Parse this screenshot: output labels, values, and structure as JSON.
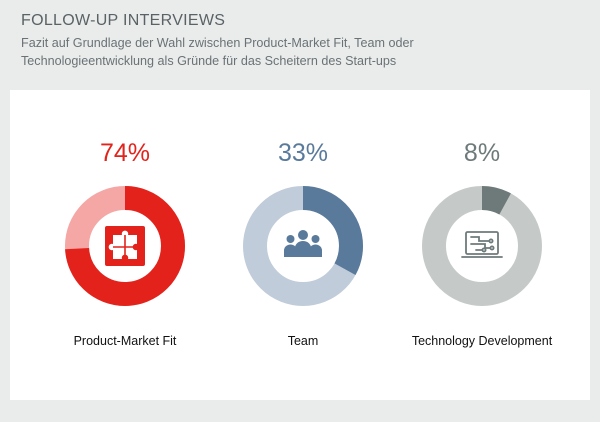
{
  "header": {
    "title": "FOLLOW-UP INTERVIEWS",
    "subtitle_line1": "Fazit auf Grundlage der Wahl zwischen Product-Market Fit, Team oder",
    "subtitle_line2": "Technologieentwicklung als Gründe für das Scheitern des Start-ups"
  },
  "chart_data": {
    "type": "pie",
    "title": "FOLLOW-UP INTERVIEWS",
    "subtitle": "Fazit auf Grundlage der Wahl zwischen Product-Market Fit, Team oder Technologieentwicklung als Gründe für das Scheitern des Start-ups",
    "charts": [
      {
        "label": "Product-Market Fit",
        "value": 74,
        "display": "74%",
        "color": "#e3231b",
        "remainder_color": "#f4a7a4",
        "pct_color": "#e3231b",
        "icon": "puzzle-icon"
      },
      {
        "label": "Team",
        "value": 33,
        "display": "33%",
        "color": "#5a7a9c",
        "remainder_color": "#c0ccd9",
        "pct_color": "#5a7a9c",
        "icon": "team-icon"
      },
      {
        "label": "Technology Development",
        "value": 8,
        "display": "8%",
        "color": "#6e7a7a",
        "remainder_color": "#c5cac9",
        "pct_color": "#6e7a7a",
        "icon": "circuit-board-icon"
      }
    ]
  }
}
